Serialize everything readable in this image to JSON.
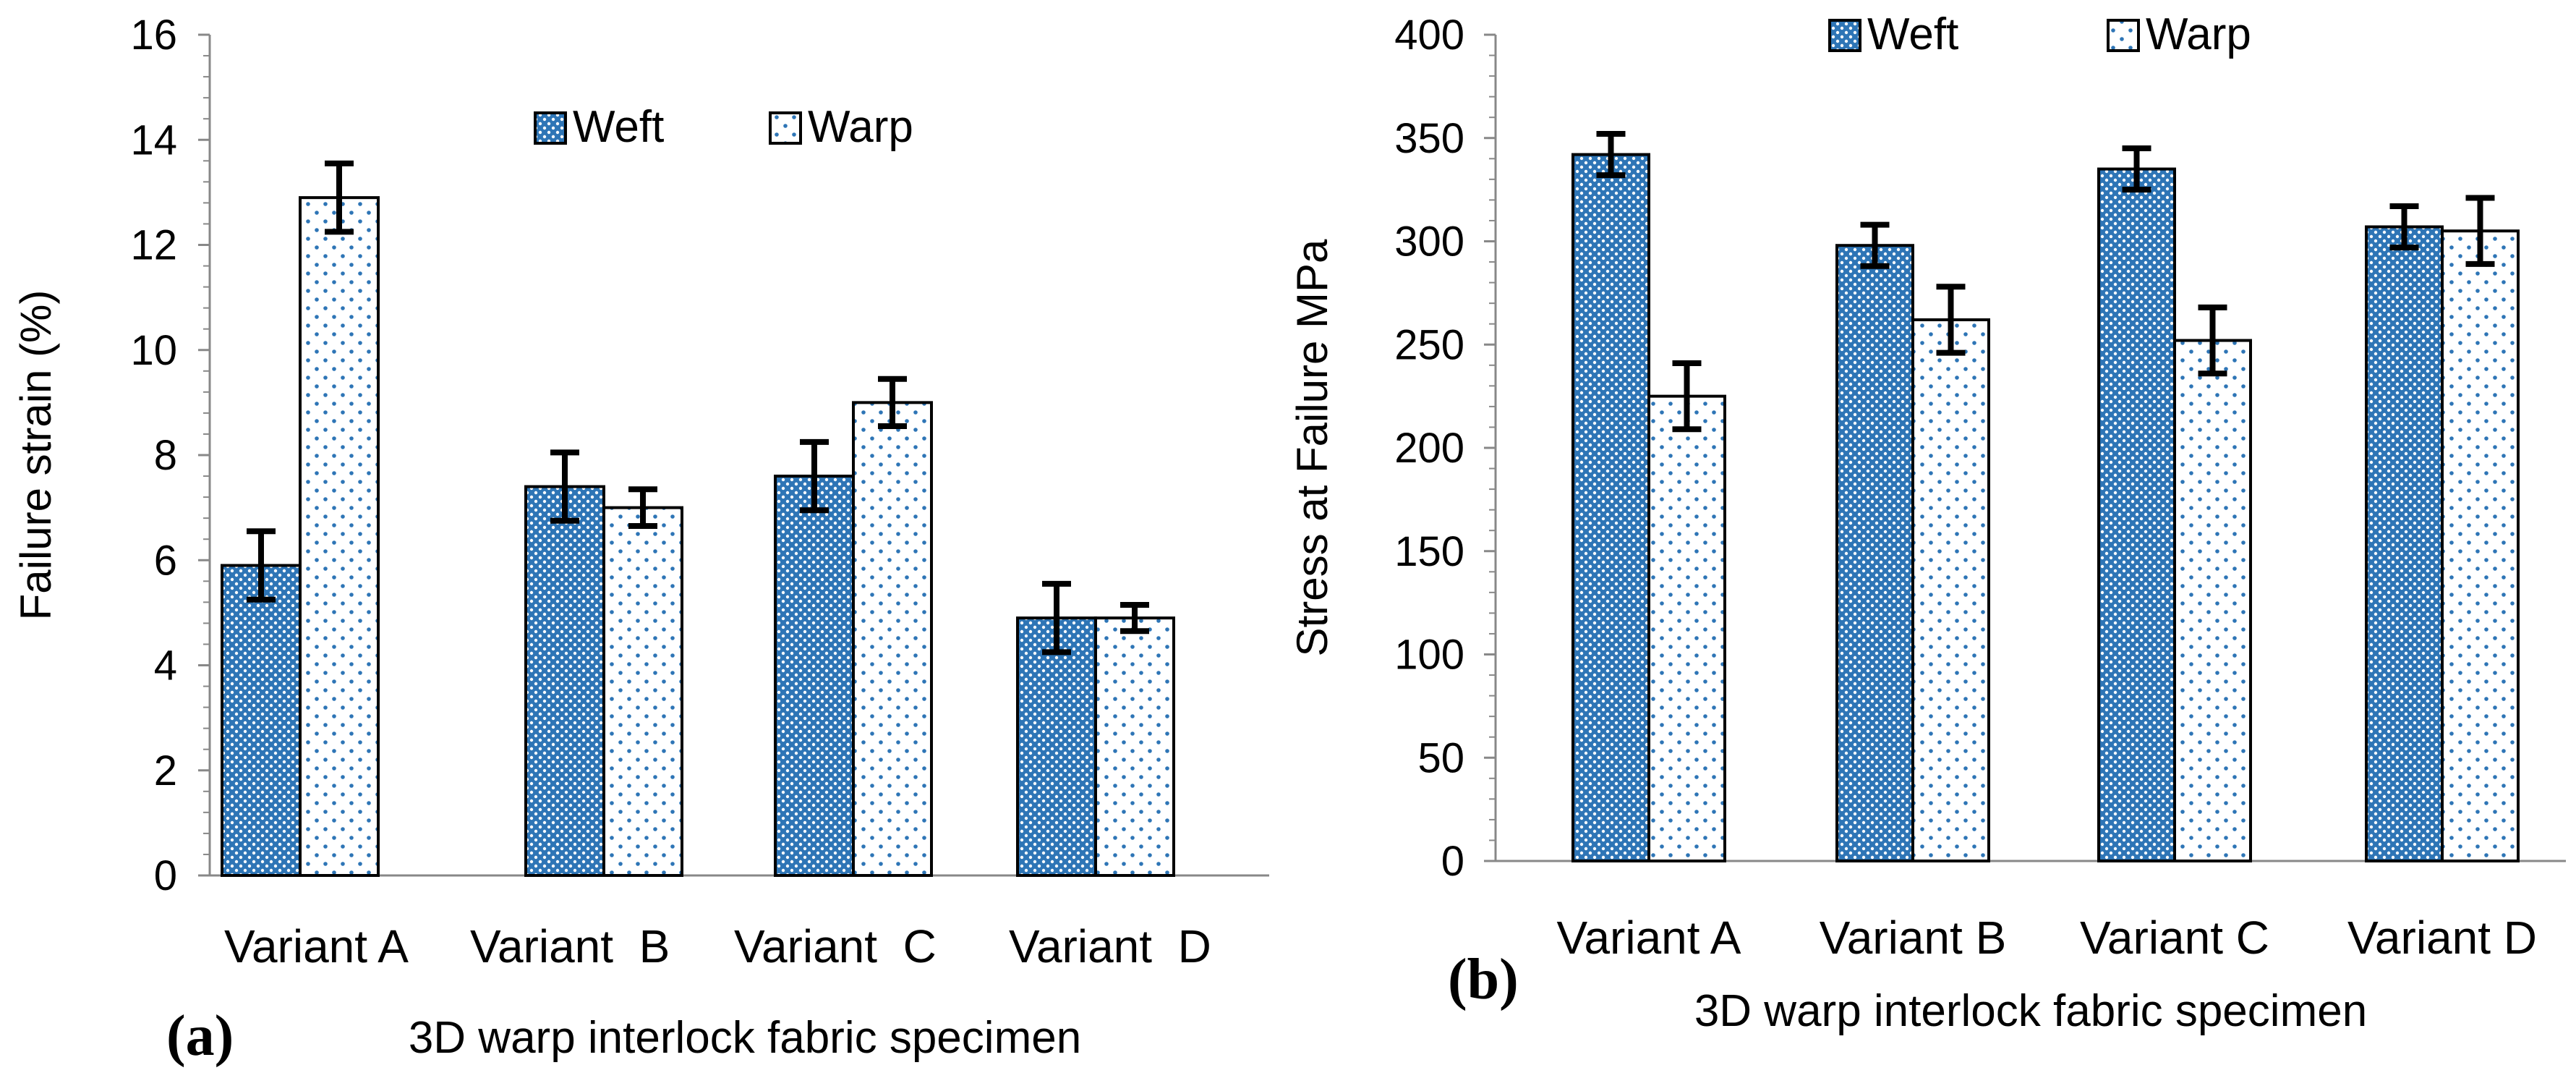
{
  "chart_data": [
    {
      "type": "bar",
      "panel_label": "(a)",
      "xlabel": "3D warp interlock fabric specimen",
      "ylabel": "Failure strain (%)",
      "categories": [
        "Variant A",
        "Variant  B",
        "Variant  C",
        "Variant  D"
      ],
      "ylim": [
        0,
        16
      ],
      "yticks": [
        0,
        2,
        4,
        6,
        8,
        10,
        12,
        14,
        16
      ],
      "legend_position": "top-center",
      "series": [
        {
          "name": "Weft",
          "values": [
            5.9,
            7.4,
            7.6,
            4.9
          ],
          "errors": [
            0.65,
            0.65,
            0.65,
            0.65
          ],
          "fill": "#2e75b6",
          "pattern": "dense-dots"
        },
        {
          "name": "Warp",
          "values": [
            12.9,
            7.0,
            9.0,
            4.9
          ],
          "errors": [
            0.65,
            0.35,
            0.45,
            0.25
          ],
          "fill": "#ffffff",
          "pattern": "sparse-dots"
        }
      ]
    },
    {
      "type": "bar",
      "panel_label": "(b)",
      "xlabel": "3D warp interlock fabric specimen",
      "ylabel": "Stress at Failure MPa",
      "categories": [
        "Variant A",
        "Variant B",
        "Variant C",
        "Variant D"
      ],
      "ylim": [
        0,
        400
      ],
      "yticks": [
        0,
        50,
        100,
        150,
        200,
        250,
        300,
        350,
        400
      ],
      "legend_position": "top-center",
      "series": [
        {
          "name": "Weft",
          "values": [
            342,
            298,
            335,
            307
          ],
          "errors": [
            10,
            10,
            10,
            10
          ],
          "fill": "#2e75b6",
          "pattern": "dense-dots"
        },
        {
          "name": "Warp",
          "values": [
            225,
            262,
            252,
            305
          ],
          "errors": [
            16,
            16,
            16,
            16
          ],
          "fill": "#ffffff",
          "pattern": "sparse-dots"
        }
      ]
    }
  ]
}
